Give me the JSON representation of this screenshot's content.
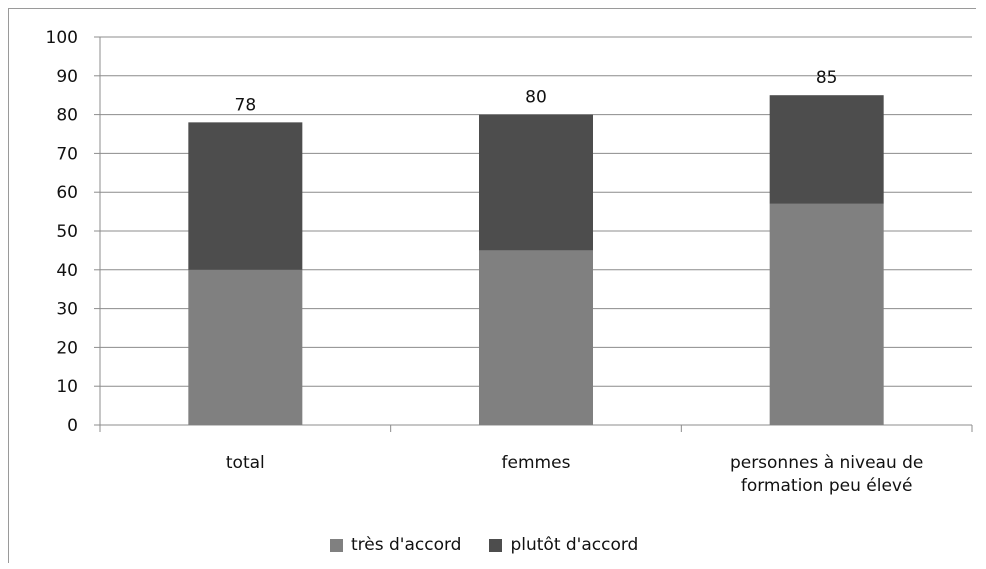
{
  "chart_data": {
    "type": "bar",
    "stacked": true,
    "categories": [
      "total",
      "femmes",
      "personnes à niveau de formation peu élevé"
    ],
    "category_lines": [
      [
        "total"
      ],
      [
        "femmes"
      ],
      [
        "personnes à niveau de",
        "formation peu élevé"
      ]
    ],
    "series": [
      {
        "name": "très d'accord",
        "color": "#808080",
        "values": [
          40,
          45,
          57
        ]
      },
      {
        "name": "plutôt d'accord",
        "color": "#4d4d4d",
        "values": [
          38,
          35,
          28
        ]
      }
    ],
    "totals": [
      78,
      80,
      85
    ],
    "ylim": [
      0,
      100
    ],
    "yticks": [
      0,
      10,
      20,
      30,
      40,
      50,
      60,
      70,
      80,
      90,
      100
    ],
    "grid": true,
    "legend_position": "bottom"
  }
}
